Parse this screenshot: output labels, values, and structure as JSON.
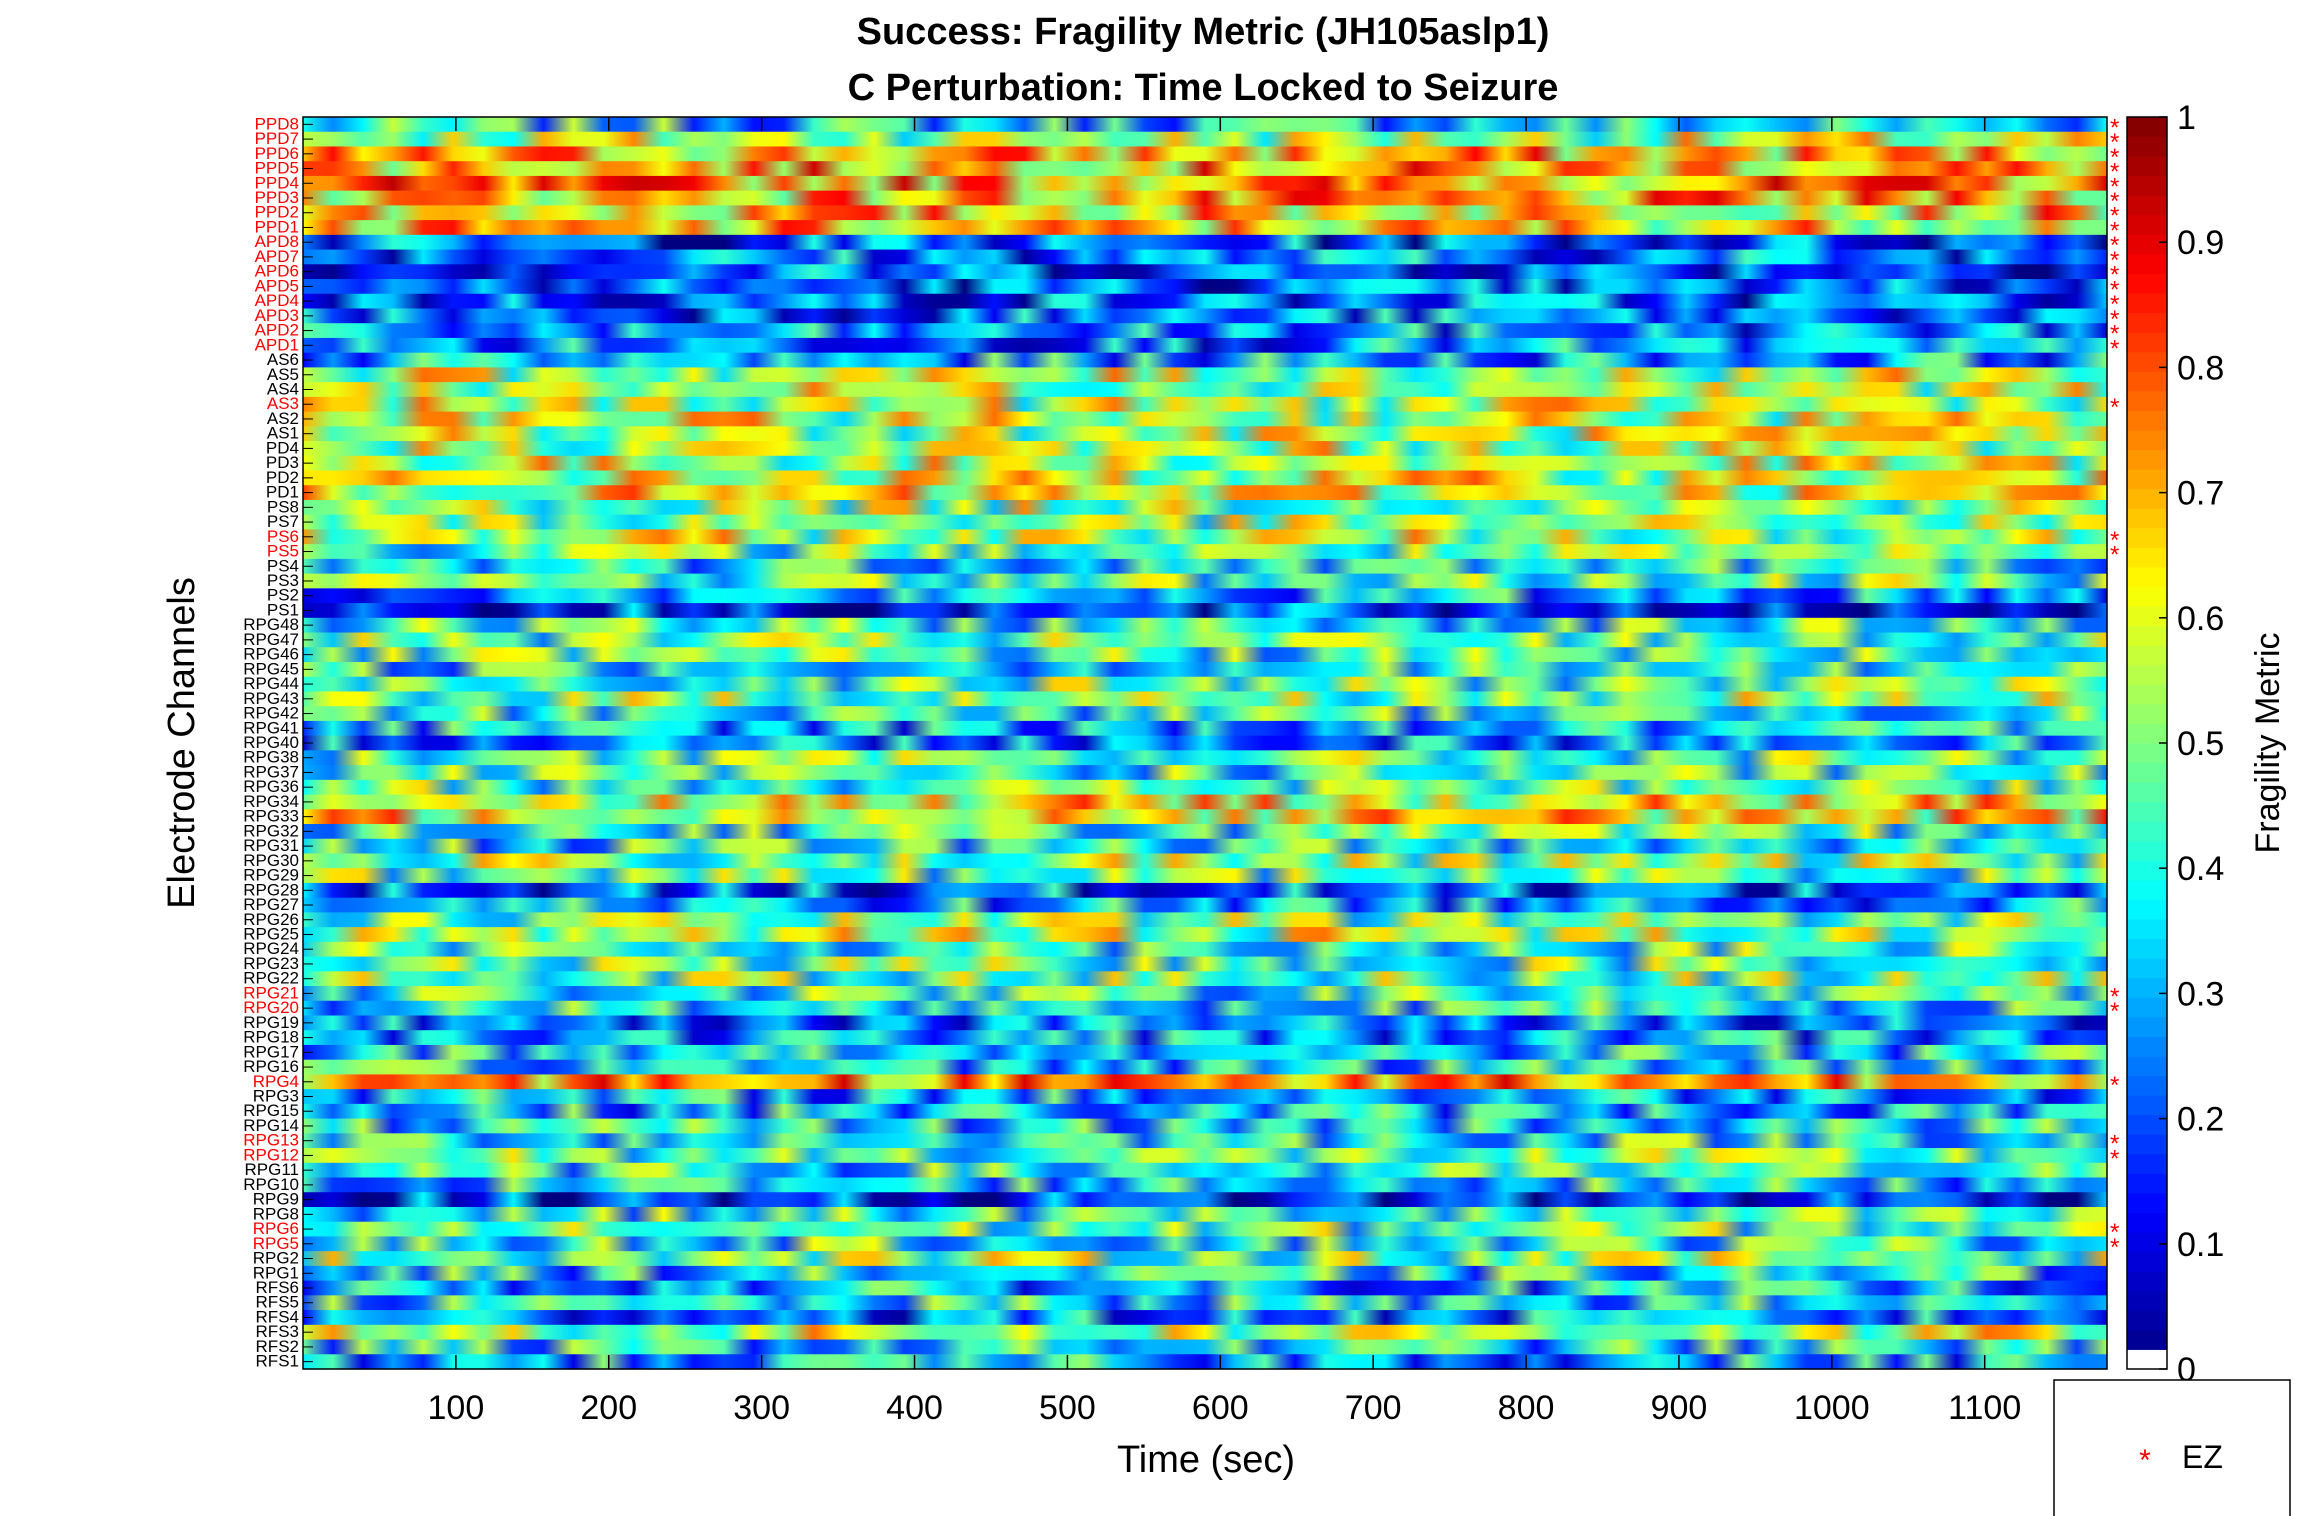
{
  "chart_data": {
    "type": "heatmap",
    "title": [
      "Success: Fragility Metric (JH105aslp1)",
      "C Perturbation:  Time Locked to Seizure"
    ],
    "xlabel": "Time (sec)",
    "ylabel": "Electrode Channels",
    "xlim": [
      0,
      1180
    ],
    "x_ticks": [
      100,
      200,
      300,
      400,
      500,
      600,
      700,
      800,
      900,
      1000,
      1100
    ],
    "colorbar": {
      "label": "Fragility Metric",
      "range": [
        0,
        1
      ],
      "ticks": [
        0,
        0.1,
        0.2,
        0.3,
        0.4,
        0.5,
        0.6,
        0.7,
        0.8,
        0.9,
        1
      ],
      "colormap": "jet"
    },
    "channels": [
      "PPD8",
      "PPD7",
      "PPD6",
      "PPD5",
      "PPD4",
      "PPD3",
      "PPD2",
      "PPD1",
      "APD8",
      "APD7",
      "APD6",
      "APD5",
      "APD4",
      "APD3",
      "APD2",
      "APD1",
      "AS6",
      "AS5",
      "AS4",
      "AS3",
      "AS2",
      "AS1",
      "PD4",
      "PD3",
      "PD2",
      "PD1",
      "PS8",
      "PS7",
      "PS6",
      "PS5",
      "PS4",
      "PS3",
      "PS2",
      "PS1",
      "RPG48",
      "RPG47",
      "RPG46",
      "RPG45",
      "RPG44",
      "RPG43",
      "RPG42",
      "RPG41",
      "RPG40",
      "RPG38",
      "RPG37",
      "RPG36",
      "RPG34",
      "RPG33",
      "RPG32",
      "RPG31",
      "RPG30",
      "RPG29",
      "RPG28",
      "RPG27",
      "RPG26",
      "RPG25",
      "RPG24",
      "RPG23",
      "RPG22",
      "RPG21",
      "RPG20",
      "RPG19",
      "RPG18",
      "RPG17",
      "RPG16",
      "RPG4",
      "RPG3",
      "RPG15",
      "RPG14",
      "RPG13",
      "RPG12",
      "RPG11",
      "RPG10",
      "RPG9",
      "RPG8",
      "RPG6",
      "RPG5",
      "RPG2",
      "RPG1",
      "RFS6",
      "RFS5",
      "RFS4",
      "RFS3",
      "RFS2",
      "RFS1"
    ],
    "ez_channels": [
      "PPD8",
      "PPD7",
      "PPD6",
      "PPD5",
      "PPD4",
      "PPD3",
      "PPD2",
      "PPD1",
      "APD8",
      "APD7",
      "APD6",
      "APD5",
      "APD4",
      "APD3",
      "APD2",
      "APD1",
      "AS3",
      "PS6",
      "PS5",
      "RPG21",
      "RPG20",
      "RPG4",
      "RPG13",
      "RPG12",
      "RPG6",
      "RPG5"
    ],
    "channel_mean_fragility": {
      "PPD8": 0.35,
      "PPD7": 0.55,
      "PPD6": 0.68,
      "PPD5": 0.7,
      "PPD4": 0.72,
      "PPD3": 0.68,
      "PPD2": 0.66,
      "PPD1": 0.65,
      "APD8": 0.2,
      "APD7": 0.25,
      "APD6": 0.22,
      "APD5": 0.2,
      "APD4": 0.22,
      "APD3": 0.24,
      "APD2": 0.25,
      "APD1": 0.26,
      "AS6": 0.3,
      "AS5": 0.55,
      "AS4": 0.56,
      "AS3": 0.55,
      "AS2": 0.56,
      "AS1": 0.55,
      "PD4": 0.55,
      "PD3": 0.56,
      "PD2": 0.58,
      "PD1": 0.6,
      "PS8": 0.52,
      "PS7": 0.5,
      "PS6": 0.55,
      "PS5": 0.45,
      "PS4": 0.38,
      "PS3": 0.45,
      "PS2": 0.3,
      "PS1": 0.15,
      "RPG48": 0.4,
      "RPG47": 0.45,
      "RPG46": 0.42,
      "RPG45": 0.38,
      "RPG44": 0.45,
      "RPG43": 0.5,
      "RPG42": 0.4,
      "RPG41": 0.3,
      "RPG40": 0.28,
      "RPG38": 0.45,
      "RPG37": 0.4,
      "RPG36": 0.45,
      "RPG34": 0.62,
      "RPG33": 0.65,
      "RPG32": 0.42,
      "RPG31": 0.38,
      "RPG30": 0.5,
      "RPG29": 0.45,
      "RPG28": 0.22,
      "RPG27": 0.3,
      "RPG26": 0.48,
      "RPG25": 0.55,
      "RPG24": 0.42,
      "RPG23": 0.45,
      "RPG22": 0.48,
      "RPG21": 0.4,
      "RPG20": 0.38,
      "RPG19": 0.25,
      "RPG18": 0.28,
      "RPG17": 0.35,
      "RPG16": 0.35,
      "RPG4": 0.75,
      "RPG3": 0.3,
      "RPG15": 0.32,
      "RPG14": 0.35,
      "RPG13": 0.4,
      "RPG12": 0.45,
      "RPG11": 0.38,
      "RPG10": 0.35,
      "RPG9": 0.15,
      "RPG8": 0.4,
      "RPG6": 0.45,
      "RPG5": 0.4,
      "RPG2": 0.5,
      "RPG1": 0.35,
      "RFS6": 0.3,
      "RFS5": 0.35,
      "RFS4": 0.25,
      "RFS3": 0.55,
      "RFS2": 0.35,
      "RFS1": 0.3
    },
    "legend": {
      "entries": [
        "EZ"
      ],
      "marker": "asterisk",
      "marker_color": "#ff0000",
      "position": "bottom-right"
    },
    "colors": {
      "ez_label": "#ff0000",
      "normal_label": "#000000"
    }
  }
}
